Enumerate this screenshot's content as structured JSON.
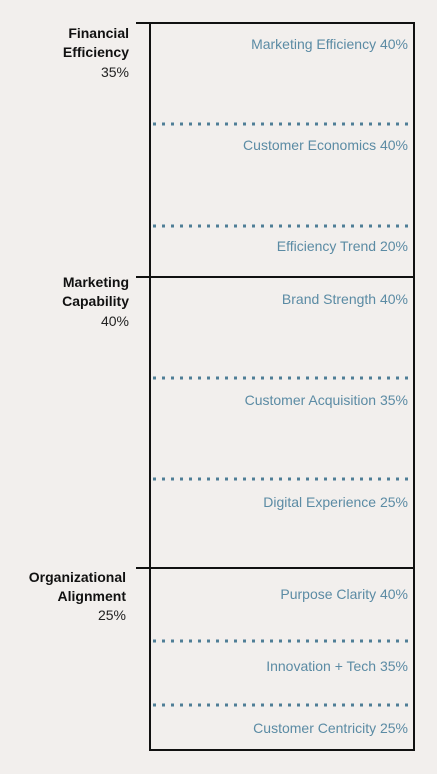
{
  "colors": {
    "background": "#f2efed",
    "frame": "#111111",
    "subcategory_text": "#5b8ba4",
    "divider_dots": "#4f7e96",
    "category_text": "#111111"
  },
  "categories": [
    {
      "name": "Financial\nEfficiency",
      "weight": "35%",
      "subcategories": [
        {
          "label": "Marketing Efficiency 40%"
        },
        {
          "label": "Customer Economics 40%"
        },
        {
          "label": "Efficiency Trend 20%"
        }
      ]
    },
    {
      "name": "Marketing\nCapability",
      "weight": "40%",
      "subcategories": [
        {
          "label": "Brand Strength 40%"
        },
        {
          "label": "Customer Acquisition 35%"
        },
        {
          "label": "Digital Experience 25%"
        }
      ]
    },
    {
      "name": "Organizational\nAlignment",
      "weight": "25%",
      "subcategories": [
        {
          "label": "Purpose Clarity 40%"
        },
        {
          "label": "Innovation + Tech 35%"
        },
        {
          "label": "Customer Centricity 25%"
        }
      ]
    }
  ]
}
